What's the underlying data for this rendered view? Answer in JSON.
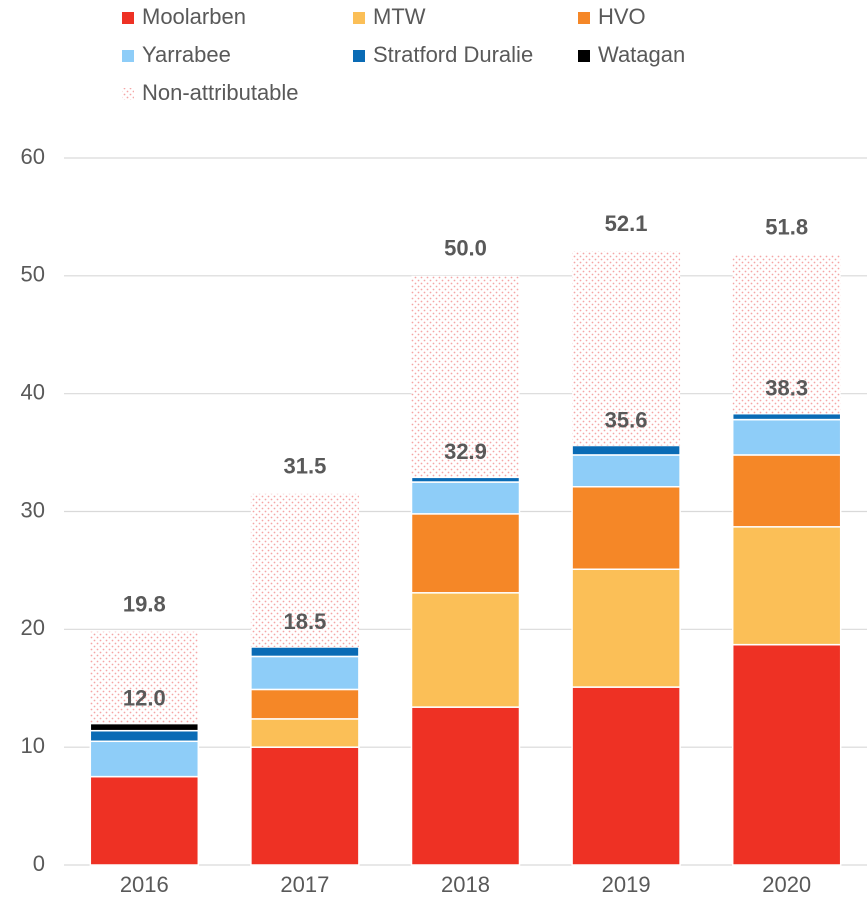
{
  "chart_data": {
    "type": "bar",
    "stacked": true,
    "categories": [
      "2016",
      "2017",
      "2018",
      "2019",
      "2020"
    ],
    "series": [
      {
        "name": "Moolarben",
        "color": "#ee3124",
        "values": [
          7.5,
          10.0,
          13.4,
          15.1,
          18.7
        ]
      },
      {
        "name": "MTW",
        "color": "#fbbf57",
        "values": [
          0,
          2.4,
          9.7,
          10.0,
          10.0
        ]
      },
      {
        "name": "HVO",
        "color": "#f58727",
        "values": [
          0,
          2.5,
          6.7,
          7.0,
          6.1
        ]
      },
      {
        "name": "Yarrabee",
        "color": "#8ecdf8",
        "values": [
          3.0,
          2.8,
          2.7,
          2.7,
          3.0
        ]
      },
      {
        "name": "Stratford Duralie",
        "color": "#0a6bb5",
        "values": [
          0.9,
          0.8,
          0.4,
          0.8,
          0.5
        ]
      },
      {
        "name": "Watagan",
        "color": "#000000",
        "values": [
          0.6,
          0,
          0,
          0,
          0
        ]
      },
      {
        "name": "Non-attributable",
        "color": "#f4a6a6",
        "pattern": "dots",
        "values": [
          7.8,
          13.0,
          17.1,
          16.5,
          13.5
        ]
      }
    ],
    "subtotal_labels": [
      "12.0",
      "18.5",
      "32.9",
      "35.6",
      "38.3"
    ],
    "total_labels": [
      "19.8",
      "31.5",
      "50.0",
      "52.1",
      "51.8"
    ],
    "ylim": [
      0,
      60
    ],
    "yticks": [
      0,
      10,
      20,
      30,
      40,
      50,
      60
    ],
    "grid": true,
    "legend": "top"
  }
}
